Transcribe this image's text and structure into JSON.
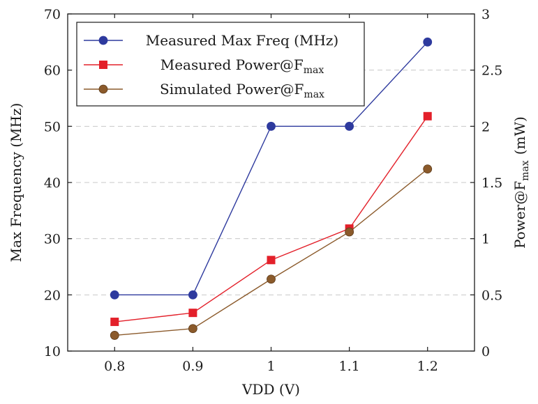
{
  "chart_data": {
    "type": "line",
    "x": [
      0.8,
      0.9,
      1.0,
      1.1,
      1.2
    ],
    "x_ticks": [
      "0.8",
      "0.9",
      "1",
      "1.1",
      "1.2"
    ],
    "xlim": [
      0.74,
      1.26
    ],
    "xlabel": "VDD (V)",
    "ylabel_left": "Max Frequency (MHz)",
    "ylabel_right_main": "Power@F",
    "ylabel_right_sub": "max",
    "ylabel_right_unit": "(mW)",
    "ylim_left": [
      10,
      70
    ],
    "ylim_right": [
      0,
      3
    ],
    "yticks_left": [
      "10",
      "20",
      "30",
      "40",
      "50",
      "60",
      "70"
    ],
    "yticks_right": [
      "0",
      "0.5",
      "1",
      "1.5",
      "2",
      "2.5",
      "3"
    ],
    "grid": "horizontal dashed",
    "legend_position": "top-left",
    "series": [
      {
        "name": "Measured Max Freq (MHz)",
        "name_main": "Measured Max Freq (MHz)",
        "name_sub": "",
        "axis": "left",
        "marker": "circle",
        "color": "#2e3a9e",
        "values": [
          20,
          20,
          50,
          50,
          65
        ]
      },
      {
        "name": "Measured Power@Fmax",
        "name_main": "Measured Power@F",
        "name_sub": "max",
        "axis": "right",
        "marker": "square",
        "color": "#e3202a",
        "values": [
          0.26,
          0.34,
          0.81,
          1.09,
          2.09
        ]
      },
      {
        "name": "Simulated Power@Fmax",
        "name_main": "Simulated Power@F",
        "name_sub": "max",
        "axis": "right",
        "marker": "circle",
        "color": "#8b5a2b",
        "values": [
          0.14,
          0.2,
          0.64,
          1.06,
          1.62
        ]
      }
    ]
  }
}
